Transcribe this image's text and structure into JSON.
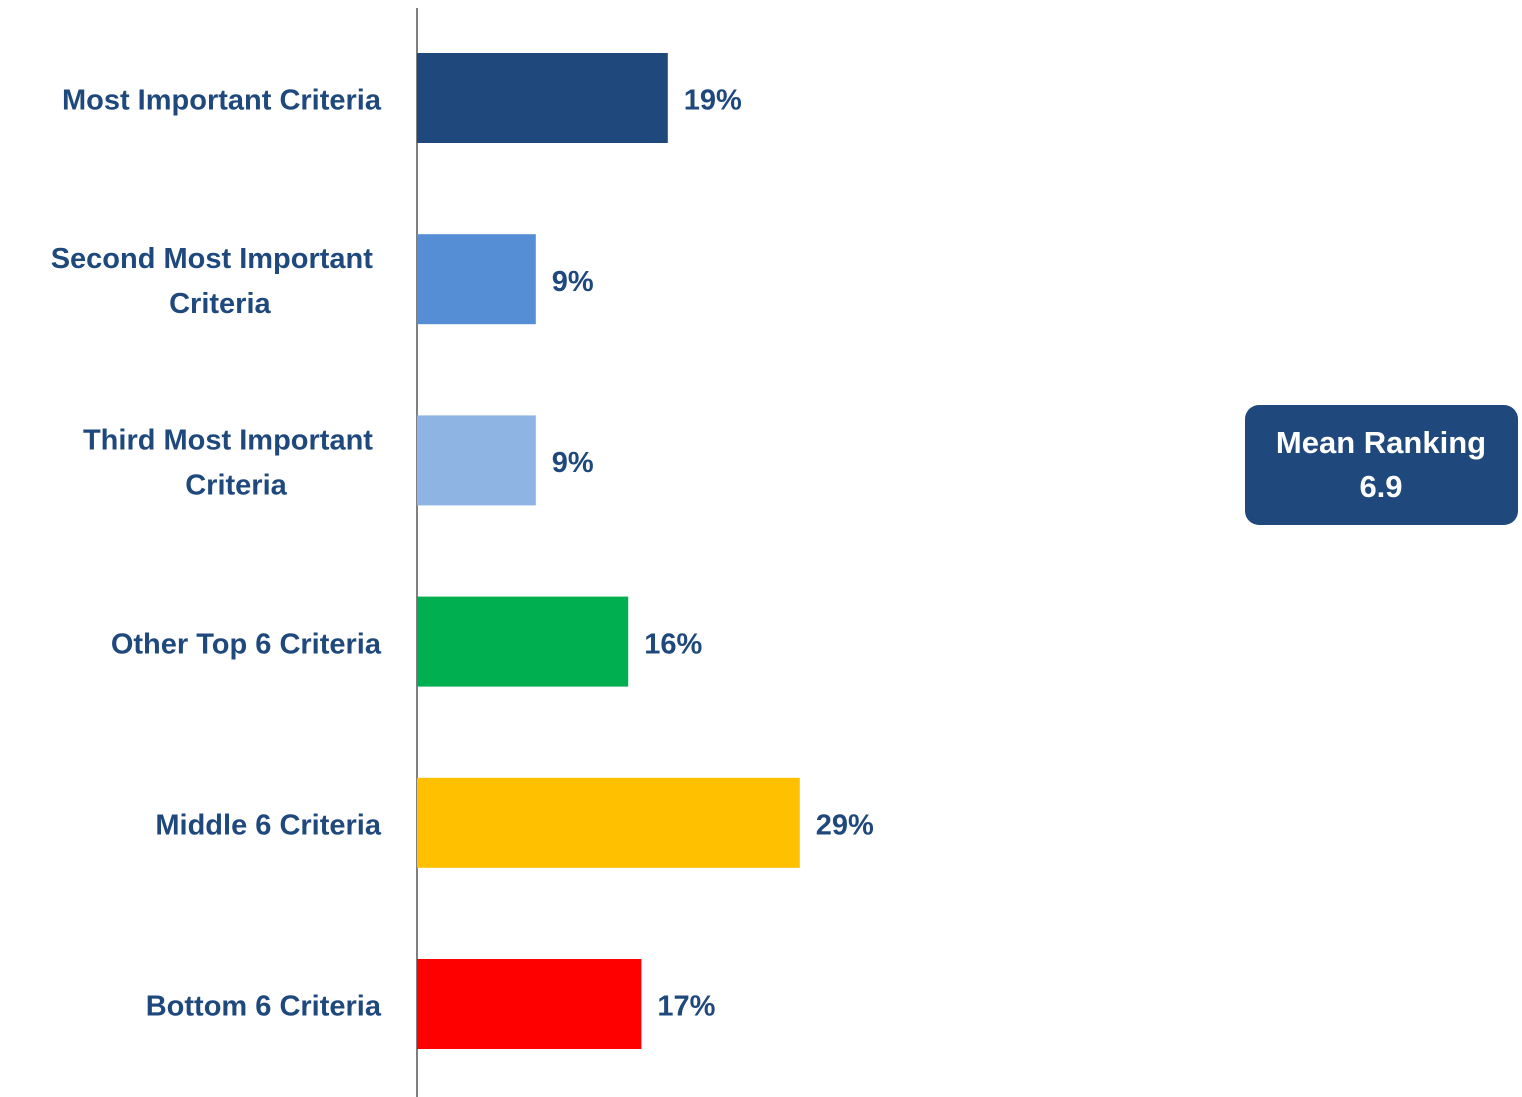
{
  "chart_data": {
    "type": "hbar",
    "categories": [
      "Most Important Criteria",
      "Second Most Important Criteria",
      "Third Most Important Criteria",
      "Other Top 6 Criteria",
      "Middle 6 Criteria",
      "Bottom 6 Criteria"
    ],
    "values": [
      19,
      9,
      9,
      16,
      29,
      17
    ],
    "value_labels": [
      "19%",
      "9%",
      "9%",
      "16%",
      "29%",
      "17%"
    ],
    "colors": [
      "#1f497d",
      "#558ed5",
      "#8eb4e3",
      "#00b050",
      "#ffc000",
      "#ff0000"
    ],
    "xlim": [
      0,
      60
    ],
    "annotation": {
      "label": "Mean Ranking",
      "value": 6.9
    }
  }
}
